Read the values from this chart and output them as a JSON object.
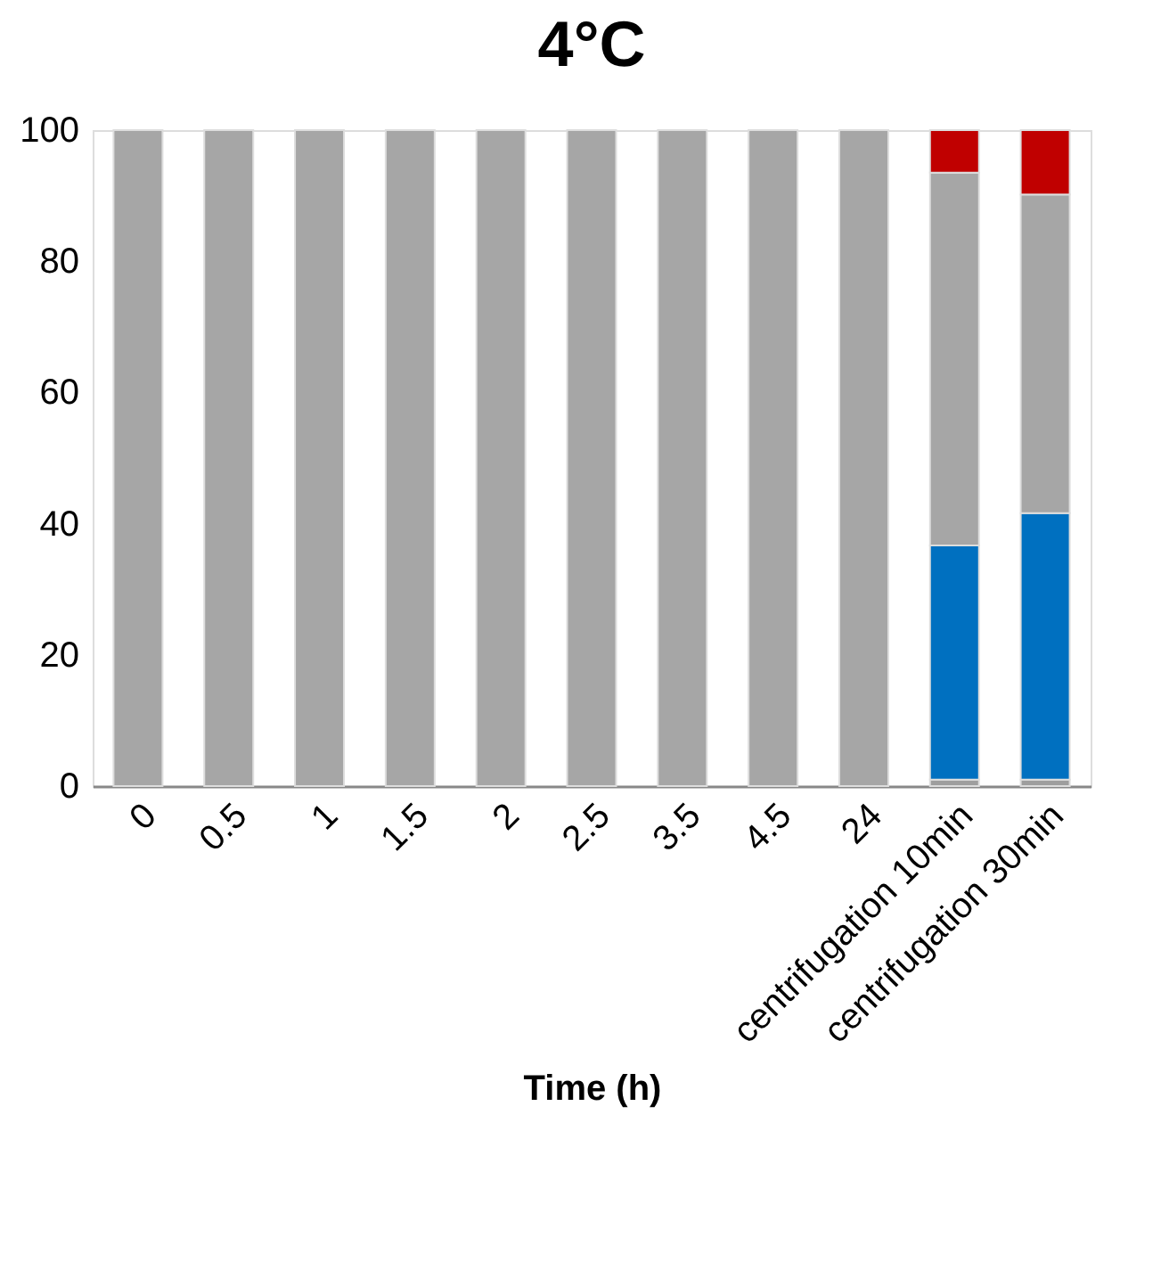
{
  "chart_data": {
    "type": "bar",
    "title": "4°C",
    "xlabel": "Time (h)",
    "stacked": true,
    "categories": [
      "0",
      "0.5",
      "1",
      "1.5",
      "2",
      "2.5",
      "3.5",
      "4.5",
      "24",
      "centrifugation 10min",
      "centrifugation 30min"
    ],
    "series": [
      {
        "color": "#9e9e9e",
        "values": [
          null,
          null,
          null,
          null,
          null,
          null,
          null,
          null,
          null,
          1,
          1
        ]
      },
      {
        "color": "#0070c0",
        "values": [
          null,
          null,
          null,
          null,
          null,
          null,
          null,
          null,
          null,
          35.7,
          40.6
        ]
      },
      {
        "color": "#a6a6a6",
        "values": [
          100,
          100,
          100,
          100,
          100,
          100,
          100,
          100,
          100,
          56.8,
          48.6
        ]
      },
      {
        "color": "#c00000",
        "values": [
          null,
          null,
          null,
          null,
          null,
          null,
          null,
          null,
          null,
          6.5,
          9.8
        ]
      }
    ],
    "ylim": [
      0,
      100
    ],
    "yticks": [
      0,
      20,
      40,
      60,
      80,
      100
    ],
    "grid": false,
    "legend": false
  }
}
